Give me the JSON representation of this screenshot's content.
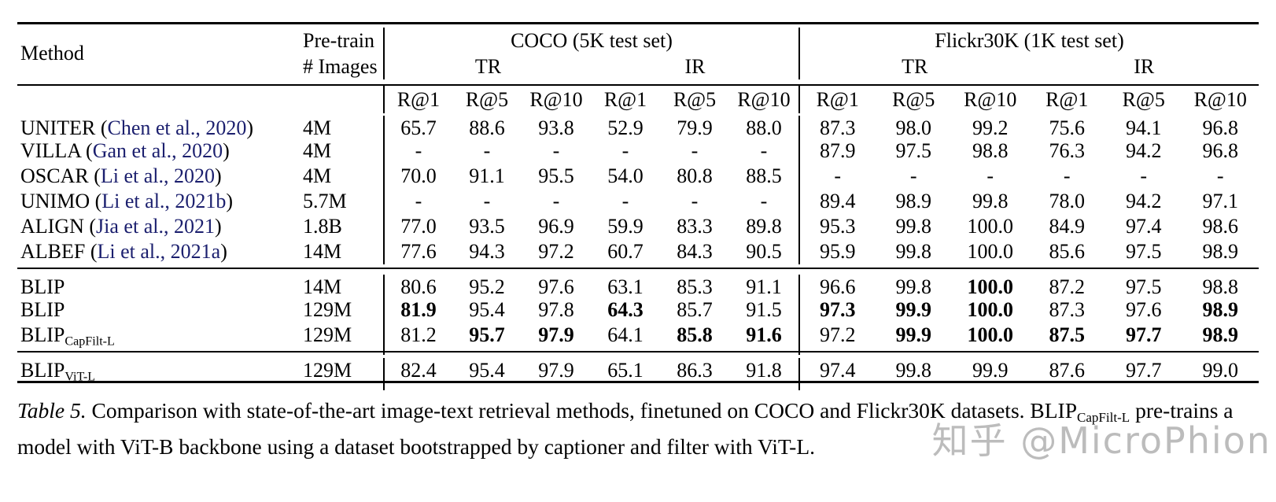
{
  "table": {
    "header": {
      "method": "Method",
      "pretrain_line1": "Pre-train",
      "pretrain_line2": "# Images",
      "coco_title": "COCO (5K test set)",
      "flickr_title": "Flickr30K (1K test set)",
      "tr": "TR",
      "ir": "IR",
      "metrics": [
        "R@1",
        "R@5",
        "R@10",
        "R@1",
        "R@5",
        "R@10",
        "R@1",
        "R@5",
        "R@10",
        "R@1",
        "R@5",
        "R@10"
      ]
    },
    "groups": [
      {
        "rows": [
          {
            "method": "UNITER",
            "citation": "Chen et al., 2020",
            "pretrain": "4M",
            "values": [
              "65.7",
              "88.6",
              "93.8",
              "52.9",
              "79.9",
              "88.0",
              "87.3",
              "98.0",
              "99.2",
              "75.6",
              "94.1",
              "96.8"
            ],
            "bold": []
          },
          {
            "method": "VILLA",
            "citation": "Gan et al., 2020",
            "pretrain": "4M",
            "values": [
              "-",
              "-",
              "-",
              "-",
              "-",
              "-",
              "87.9",
              "97.5",
              "98.8",
              "76.3",
              "94.2",
              "96.8"
            ],
            "bold": []
          },
          {
            "method": "OSCAR",
            "citation": "Li et al., 2020",
            "pretrain": "4M",
            "values": [
              "70.0",
              "91.1",
              "95.5",
              "54.0",
              "80.8",
              "88.5",
              "-",
              "-",
              "-",
              "-",
              "-",
              "-"
            ],
            "bold": []
          },
          {
            "method": "UNIMO",
            "citation": "Li et al., 2021b",
            "pretrain": "5.7M",
            "values": [
              "-",
              "-",
              "-",
              "-",
              "-",
              "-",
              "89.4",
              "98.9",
              "99.8",
              "78.0",
              "94.2",
              "97.1"
            ],
            "bold": []
          },
          {
            "method": "ALIGN",
            "citation": "Jia et al., 2021",
            "pretrain": "1.8B",
            "values": [
              "77.0",
              "93.5",
              "96.9",
              "59.9",
              "83.3",
              "89.8",
              "95.3",
              "99.8",
              "100.0",
              "84.9",
              "97.4",
              "98.6"
            ],
            "bold": []
          },
          {
            "method": "ALBEF",
            "citation": "Li et al., 2021a",
            "pretrain": "14M",
            "values": [
              "77.6",
              "94.3",
              "97.2",
              "60.7",
              "84.3",
              "90.5",
              "95.9",
              "99.8",
              "100.0",
              "85.6",
              "97.5",
              "98.9"
            ],
            "bold": []
          }
        ]
      },
      {
        "rows": [
          {
            "method": "BLIP",
            "pretrain": "14M",
            "values": [
              "80.6",
              "95.2",
              "97.6",
              "63.1",
              "85.3",
              "91.1",
              "96.6",
              "99.8",
              "100.0",
              "87.2",
              "97.5",
              "98.8"
            ],
            "bold": [
              8
            ]
          },
          {
            "method": "BLIP",
            "pretrain": "129M",
            "values": [
              "81.9",
              "95.4",
              "97.8",
              "64.3",
              "85.7",
              "91.5",
              "97.3",
              "99.9",
              "100.0",
              "87.3",
              "97.6",
              "98.9"
            ],
            "bold": [
              0,
              3,
              6,
              7,
              8,
              11
            ]
          },
          {
            "method": "BLIP",
            "subscript": "CapFilt-L",
            "pretrain": "129M",
            "values": [
              "81.2",
              "95.7",
              "97.9",
              "64.1",
              "85.8",
              "91.6",
              "97.2",
              "99.9",
              "100.0",
              "87.5",
              "97.7",
              "98.9"
            ],
            "bold": [
              1,
              2,
              4,
              5,
              7,
              8,
              9,
              10,
              11
            ]
          }
        ]
      },
      {
        "rows": [
          {
            "method": "BLIP",
            "subscript": "ViT-L",
            "pretrain": "129M",
            "values": [
              "82.4",
              "95.4",
              "97.9",
              "65.1",
              "86.3",
              "91.8",
              "97.4",
              "99.8",
              "99.9",
              "87.6",
              "97.7",
              "99.0"
            ],
            "bold": []
          }
        ]
      }
    ]
  },
  "caption": {
    "label": "Table 5.",
    "text_before_sub": " Comparison with state-of-the-art image-text retrieval methods, finetuned on COCO and Flickr30K datasets. BLIP",
    "subscript": "CapFilt-L",
    "text_after_sub": " pre-trains a model with ViT-B backbone using a dataset bootstrapped by captioner and filter with ViT-L."
  },
  "watermark": "知乎 @MicroPhion",
  "colors": {
    "citation": "#1b1f6e",
    "text": "#000000",
    "watermark": "#bcbcbc"
  }
}
